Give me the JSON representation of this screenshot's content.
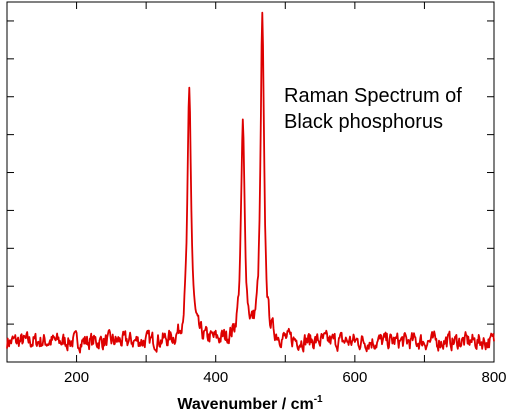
{
  "chart_data": {
    "type": "line",
    "title": "",
    "annotation_lines": [
      "Raman Spectrum of",
      "Black phosphorus"
    ],
    "xlabel": "Wavenumber / cm",
    "xlabel_superscript": "-1",
    "ylabel": "",
    "xlim": [
      100,
      800
    ],
    "ylim": [
      0,
      1.05
    ],
    "x_ticks": [
      200,
      400,
      600,
      800
    ],
    "y_minor_tick_count": 9,
    "grid": false,
    "legend": "none",
    "series": [
      {
        "color": "#dd0000",
        "baseline": 0.06,
        "noise_amplitude": 0.035,
        "peaks": [
          {
            "x": 362,
            "height": 0.72,
            "width": 3.2
          },
          {
            "x": 439,
            "height": 0.62,
            "width": 3.2
          },
          {
            "x": 467,
            "height": 0.93,
            "width": 3.0
          }
        ]
      }
    ]
  }
}
